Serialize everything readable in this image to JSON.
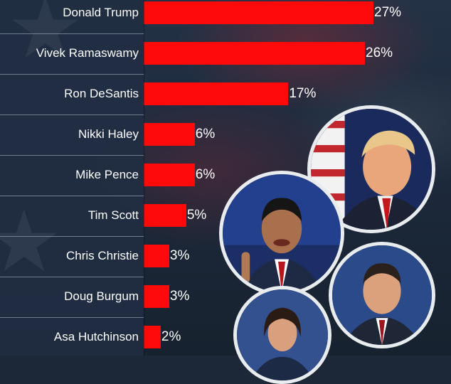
{
  "chart_data": {
    "type": "bar",
    "orientation": "horizontal",
    "title": "",
    "xlabel": "",
    "ylabel": "",
    "xlim": [
      0,
      27
    ],
    "grid": false,
    "legend": "none",
    "value_suffix": "%",
    "categories": [
      "Donald Trump",
      "Vivek Ramaswamy",
      "Ron DeSantis",
      "Nikki Haley",
      "Mike Pence",
      "Tim Scott",
      "Chris Christie",
      "Doug Burgum",
      "Asa Hutchinson"
    ],
    "values": [
      27,
      26,
      17,
      6,
      6,
      5,
      3,
      3,
      2
    ],
    "bar_color": "#ff0a0a"
  },
  "colors": {
    "bar": "#ff0a0a",
    "label_panel": "#212e42",
    "text": "#ffffff"
  }
}
